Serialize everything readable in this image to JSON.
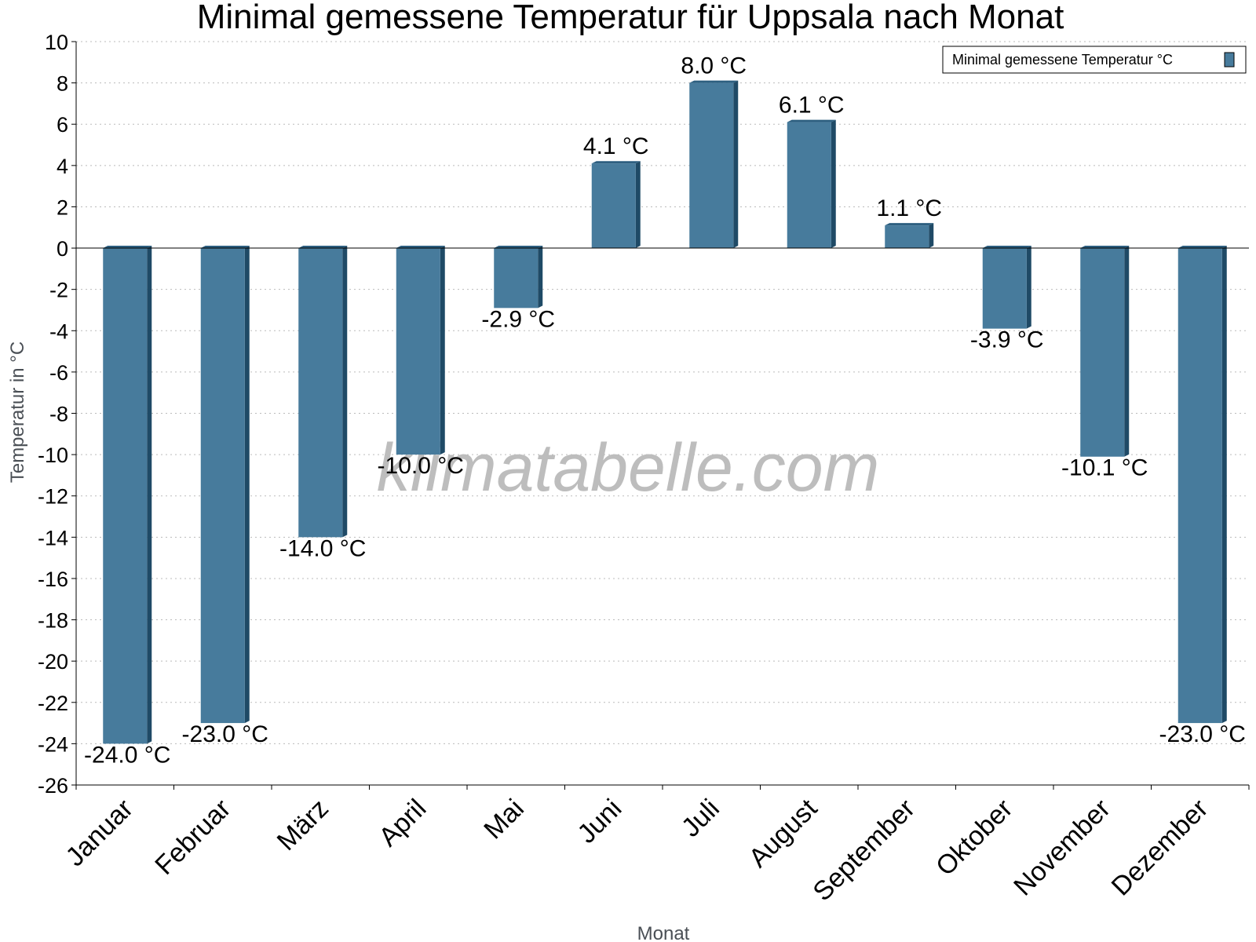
{
  "colors": {
    "bar_face": "#477b9c",
    "bar_side": "#1f4a66",
    "bar_top": "#2d5f80",
    "grid": "#bbbbbb"
  },
  "watermark": "klimatabelle.com",
  "chart_data": {
    "type": "bar",
    "title": "Minimal gemessene Temperatur für Uppsala nach Monat",
    "xlabel": "Monat",
    "ylabel": "Temperatur in °C",
    "ylim": [
      -26,
      10
    ],
    "ytick_step": 2,
    "grid": true,
    "legend_position": "top-right",
    "categories": [
      "Januar",
      "Februar",
      "März",
      "April",
      "Mai",
      "Juni",
      "Juli",
      "August",
      "September",
      "Oktober",
      "November",
      "Dezember"
    ],
    "series": [
      {
        "name": "Minimal gemessene Temperatur °C",
        "values": [
          -24.0,
          -23.0,
          -14.0,
          -10.0,
          -2.9,
          4.1,
          8.0,
          6.1,
          1.1,
          -3.9,
          -10.1,
          -23.0
        ],
        "labels": [
          "-24.0 °C",
          "-23.0 °C",
          "-14.0 °C",
          "-10.0 °C",
          "-2.9 °C",
          "4.1 °C",
          "8.0 °C",
          "6.1 °C",
          "1.1 °C",
          "-3.9 °C",
          "-10.1 °C",
          "-23.0 °C"
        ]
      }
    ]
  }
}
